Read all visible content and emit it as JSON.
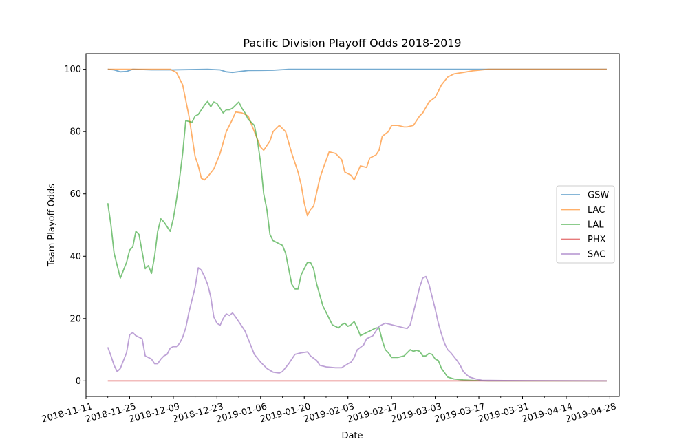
{
  "chart_data": {
    "type": "line",
    "title": "Pacific Division Playoff Odds 2018-2019",
    "xlabel": "Date",
    "ylabel": "Team Playoff Odds",
    "x_start": "2018-11-18",
    "x_end": "2019-04-27",
    "xlim": [
      "2018-11-11",
      "2019-05-01"
    ],
    "ylim": [
      -5,
      105
    ],
    "x_ticks": [
      "2018-11-11",
      "2018-11-25",
      "2018-12-09",
      "2018-12-23",
      "2019-01-06",
      "2019-01-20",
      "2019-02-03",
      "2019-02-17",
      "2019-03-03",
      "2019-03-17",
      "2019-03-31",
      "2019-04-14",
      "2019-04-28"
    ],
    "y_ticks": [
      0,
      20,
      40,
      60,
      80,
      100
    ],
    "grid": false,
    "legend_position": "center-right",
    "series": [
      {
        "name": "GSW",
        "color": "#1f77b4",
        "points": [
          [
            "2018-11-18",
            100
          ],
          [
            "2018-11-20",
            99.8
          ],
          [
            "2018-11-22",
            99.2
          ],
          [
            "2018-11-24",
            99.3
          ],
          [
            "2018-11-26",
            100
          ],
          [
            "2018-12-02",
            99.8
          ],
          [
            "2018-12-09",
            99.8
          ],
          [
            "2018-12-20",
            100
          ],
          [
            "2018-12-24",
            99.8
          ],
          [
            "2018-12-26",
            99.2
          ],
          [
            "2018-12-28",
            99
          ],
          [
            "2019-01-02",
            99.6
          ],
          [
            "2019-01-10",
            99.7
          ],
          [
            "2019-01-15",
            100
          ],
          [
            "2019-04-27",
            100
          ]
        ]
      },
      {
        "name": "LAC",
        "color": "#ff7f0e",
        "points": [
          [
            "2018-11-18",
            100
          ],
          [
            "2018-12-08",
            100
          ],
          [
            "2018-12-10",
            99
          ],
          [
            "2018-12-12",
            95
          ],
          [
            "2018-12-14",
            85
          ],
          [
            "2018-12-16",
            72
          ],
          [
            "2018-12-17",
            69
          ],
          [
            "2018-12-18",
            65
          ],
          [
            "2018-12-19",
            64.5
          ],
          [
            "2018-12-20",
            65.5
          ],
          [
            "2018-12-22",
            68
          ],
          [
            "2018-12-24",
            73
          ],
          [
            "2018-12-26",
            80
          ],
          [
            "2018-12-28",
            84
          ],
          [
            "2018-12-29",
            86.3
          ],
          [
            "2018-12-31",
            86
          ],
          [
            "2019-01-02",
            85
          ],
          [
            "2019-01-04",
            80
          ],
          [
            "2019-01-06",
            75
          ],
          [
            "2019-01-07",
            74
          ],
          [
            "2019-01-09",
            77
          ],
          [
            "2019-01-10",
            80
          ],
          [
            "2019-01-12",
            82
          ],
          [
            "2019-01-14",
            80
          ],
          [
            "2019-01-16",
            73
          ],
          [
            "2019-01-18",
            67
          ],
          [
            "2019-01-19",
            63
          ],
          [
            "2019-01-20",
            57
          ],
          [
            "2019-01-21",
            53
          ],
          [
            "2019-01-22",
            55
          ],
          [
            "2019-01-23",
            56
          ],
          [
            "2019-01-25",
            65
          ],
          [
            "2019-01-26",
            68
          ],
          [
            "2019-01-28",
            73.5
          ],
          [
            "2019-01-30",
            73
          ],
          [
            "2019-02-01",
            71
          ],
          [
            "2019-02-02",
            67
          ],
          [
            "2019-02-04",
            66
          ],
          [
            "2019-02-05",
            64.5
          ],
          [
            "2019-02-07",
            69
          ],
          [
            "2019-02-09",
            68.5
          ],
          [
            "2019-02-10",
            71.5
          ],
          [
            "2019-02-12",
            72.5
          ],
          [
            "2019-02-13",
            74
          ],
          [
            "2019-02-14",
            78.5
          ],
          [
            "2019-02-16",
            80
          ],
          [
            "2019-02-17",
            82
          ],
          [
            "2019-02-19",
            82
          ],
          [
            "2019-02-21",
            81.5
          ],
          [
            "2019-02-22",
            81.5
          ],
          [
            "2019-02-24",
            82
          ],
          [
            "2019-02-26",
            85
          ],
          [
            "2019-02-27",
            86
          ],
          [
            "2019-03-01",
            89.5
          ],
          [
            "2019-03-03",
            91
          ],
          [
            "2019-03-05",
            95
          ],
          [
            "2019-03-07",
            97.5
          ],
          [
            "2019-03-09",
            98.5
          ],
          [
            "2019-03-12",
            99
          ],
          [
            "2019-03-15",
            99.5
          ],
          [
            "2019-03-20",
            100
          ],
          [
            "2019-04-27",
            100
          ]
        ]
      },
      {
        "name": "LAL",
        "color": "#2ca02c",
        "points": [
          [
            "2018-11-18",
            57
          ],
          [
            "2018-11-19",
            50
          ],
          [
            "2018-11-20",
            41
          ],
          [
            "2018-11-22",
            33
          ],
          [
            "2018-11-24",
            38
          ],
          [
            "2018-11-25",
            42
          ],
          [
            "2018-11-26",
            43
          ],
          [
            "2018-11-27",
            48
          ],
          [
            "2018-11-28",
            47
          ],
          [
            "2018-11-30",
            36
          ],
          [
            "2018-12-01",
            37
          ],
          [
            "2018-12-02",
            34.5
          ],
          [
            "2018-12-03",
            40
          ],
          [
            "2018-12-04",
            48
          ],
          [
            "2018-12-05",
            52
          ],
          [
            "2018-12-06",
            51
          ],
          [
            "2018-12-08",
            48
          ],
          [
            "2018-12-09",
            52
          ],
          [
            "2018-12-10",
            58
          ],
          [
            "2018-12-11",
            65
          ],
          [
            "2018-12-12",
            73
          ],
          [
            "2018-12-13",
            83.5
          ],
          [
            "2018-12-15",
            83
          ],
          [
            "2018-12-16",
            85
          ],
          [
            "2018-12-17",
            85.5
          ],
          [
            "2018-12-19",
            88.5
          ],
          [
            "2018-12-20",
            89.7
          ],
          [
            "2018-12-21",
            88
          ],
          [
            "2018-12-22",
            89.5
          ],
          [
            "2018-12-23",
            89
          ],
          [
            "2018-12-25",
            86
          ],
          [
            "2018-12-26",
            87
          ],
          [
            "2018-12-27",
            87
          ],
          [
            "2018-12-28",
            87.5
          ],
          [
            "2018-12-30",
            89.5
          ],
          [
            "2018-12-31",
            87.5
          ],
          [
            "2019-01-01",
            86
          ],
          [
            "2019-01-02",
            84
          ],
          [
            "2019-01-04",
            82
          ],
          [
            "2019-01-05",
            77
          ],
          [
            "2019-01-06",
            70
          ],
          [
            "2019-01-07",
            60
          ],
          [
            "2019-01-08",
            55
          ],
          [
            "2019-01-09",
            47
          ],
          [
            "2019-01-10",
            45
          ],
          [
            "2019-01-12",
            44
          ],
          [
            "2019-01-13",
            43.5
          ],
          [
            "2019-01-14",
            41
          ],
          [
            "2019-01-15",
            36
          ],
          [
            "2019-01-16",
            31
          ],
          [
            "2019-01-17",
            29.5
          ],
          [
            "2019-01-18",
            29.5
          ],
          [
            "2019-01-19",
            34
          ],
          [
            "2019-01-21",
            38
          ],
          [
            "2019-01-22",
            38
          ],
          [
            "2019-01-23",
            36
          ],
          [
            "2019-01-24",
            31
          ],
          [
            "2019-01-26",
            24
          ],
          [
            "2019-01-28",
            20
          ],
          [
            "2019-01-29",
            18
          ],
          [
            "2019-01-31",
            17
          ],
          [
            "2019-02-01",
            18
          ],
          [
            "2019-02-02",
            18.5
          ],
          [
            "2019-02-03",
            17.5
          ],
          [
            "2019-02-04",
            18
          ],
          [
            "2019-02-05",
            19
          ],
          [
            "2019-02-06",
            17
          ],
          [
            "2019-02-07",
            14.5
          ],
          [
            "2019-02-09",
            15.5
          ],
          [
            "2019-02-10",
            16
          ],
          [
            "2019-02-12",
            17
          ],
          [
            "2019-02-13",
            17
          ],
          [
            "2019-02-14",
            13
          ],
          [
            "2019-02-15",
            10
          ],
          [
            "2019-02-16",
            9
          ],
          [
            "2019-02-17",
            7.5
          ],
          [
            "2019-02-19",
            7.5
          ],
          [
            "2019-02-21",
            8
          ],
          [
            "2019-02-22",
            9
          ],
          [
            "2019-02-23",
            10
          ],
          [
            "2019-02-24",
            9.5
          ],
          [
            "2019-02-25",
            9.8
          ],
          [
            "2019-02-26",
            9.5
          ],
          [
            "2019-02-27",
            8
          ],
          [
            "2019-02-28",
            8
          ],
          [
            "2019-03-01",
            8.8
          ],
          [
            "2019-03-02",
            8.5
          ],
          [
            "2019-03-03",
            7
          ],
          [
            "2019-03-04",
            6.5
          ],
          [
            "2019-03-05",
            4
          ],
          [
            "2019-03-07",
            1.2
          ],
          [
            "2019-03-09",
            0.6
          ],
          [
            "2019-03-12",
            0.3
          ],
          [
            "2019-03-16",
            0.1
          ],
          [
            "2019-03-20",
            0
          ],
          [
            "2019-04-27",
            0
          ]
        ]
      },
      {
        "name": "PHX",
        "color": "#d62728",
        "points": [
          [
            "2018-11-18",
            0
          ],
          [
            "2019-04-27",
            0
          ]
        ]
      },
      {
        "name": "SAC",
        "color": "#9467bd",
        "points": [
          [
            "2018-11-18",
            10.8
          ],
          [
            "2018-11-19",
            8
          ],
          [
            "2018-11-20",
            5
          ],
          [
            "2018-11-21",
            3
          ],
          [
            "2018-11-22",
            4
          ],
          [
            "2018-11-24",
            9
          ],
          [
            "2018-11-25",
            14.8
          ],
          [
            "2018-11-26",
            15.5
          ],
          [
            "2018-11-27",
            14.5
          ],
          [
            "2018-11-29",
            13.5
          ],
          [
            "2018-11-30",
            8
          ],
          [
            "2018-12-02",
            7
          ],
          [
            "2018-12-03",
            5.5
          ],
          [
            "2018-12-04",
            5.5
          ],
          [
            "2018-12-05",
            7
          ],
          [
            "2018-12-06",
            8
          ],
          [
            "2018-12-07",
            8.5
          ],
          [
            "2018-12-08",
            10.5
          ],
          [
            "2018-12-09",
            11
          ],
          [
            "2018-12-10",
            11
          ],
          [
            "2018-12-11",
            12
          ],
          [
            "2018-12-12",
            14
          ],
          [
            "2018-12-13",
            17
          ],
          [
            "2018-12-14",
            22
          ],
          [
            "2018-12-15",
            26
          ],
          [
            "2018-12-16",
            30
          ],
          [
            "2018-12-17",
            36.3
          ],
          [
            "2018-12-18",
            35.5
          ],
          [
            "2018-12-19",
            33.5
          ],
          [
            "2018-12-20",
            31
          ],
          [
            "2018-12-21",
            27
          ],
          [
            "2018-12-22",
            20.5
          ],
          [
            "2018-12-23",
            18.5
          ],
          [
            "2018-12-24",
            17.8
          ],
          [
            "2018-12-25",
            20
          ],
          [
            "2018-12-26",
            21.5
          ],
          [
            "2018-12-27",
            21
          ],
          [
            "2018-12-28",
            21.8
          ],
          [
            "2018-12-29",
            20.5
          ],
          [
            "2018-12-31",
            17.5
          ],
          [
            "2019-01-01",
            16
          ],
          [
            "2019-01-03",
            11
          ],
          [
            "2019-01-04",
            8.5
          ],
          [
            "2019-01-06",
            6
          ],
          [
            "2019-01-08",
            4
          ],
          [
            "2019-01-10",
            2.8
          ],
          [
            "2019-01-12",
            2.5
          ],
          [
            "2019-01-13",
            3
          ],
          [
            "2019-01-15",
            5.5
          ],
          [
            "2019-01-17",
            8.5
          ],
          [
            "2019-01-19",
            9
          ],
          [
            "2019-01-21",
            9.3
          ],
          [
            "2019-01-22",
            8
          ],
          [
            "2019-01-24",
            6.5
          ],
          [
            "2019-01-25",
            5
          ],
          [
            "2019-01-27",
            4.5
          ],
          [
            "2019-01-30",
            4.2
          ],
          [
            "2019-02-01",
            4.2
          ],
          [
            "2019-02-03",
            5.5
          ],
          [
            "2019-02-04",
            6
          ],
          [
            "2019-02-05",
            7.5
          ],
          [
            "2019-02-06",
            10
          ],
          [
            "2019-02-08",
            11.5
          ],
          [
            "2019-02-09",
            13.5
          ],
          [
            "2019-02-11",
            14.5
          ],
          [
            "2019-02-12",
            16
          ],
          [
            "2019-02-13",
            17.5
          ],
          [
            "2019-02-15",
            18.5
          ],
          [
            "2019-02-17",
            18
          ],
          [
            "2019-02-19",
            17.5
          ],
          [
            "2019-02-21",
            17
          ],
          [
            "2019-02-22",
            16.8
          ],
          [
            "2019-02-23",
            18
          ],
          [
            "2019-02-24",
            22
          ],
          [
            "2019-02-25",
            26
          ],
          [
            "2019-02-26",
            30
          ],
          [
            "2019-02-27",
            33
          ],
          [
            "2019-02-28",
            33.5
          ],
          [
            "2019-03-01",
            31
          ],
          [
            "2019-03-02",
            27
          ],
          [
            "2019-03-03",
            23
          ],
          [
            "2019-03-04",
            18.5
          ],
          [
            "2019-03-05",
            15
          ],
          [
            "2019-03-06",
            12
          ],
          [
            "2019-03-07",
            10
          ],
          [
            "2019-03-08",
            9
          ],
          [
            "2019-03-10",
            6.5
          ],
          [
            "2019-03-11",
            5
          ],
          [
            "2019-03-12",
            3
          ],
          [
            "2019-03-13",
            2
          ],
          [
            "2019-03-14",
            1.2
          ],
          [
            "2019-03-16",
            0.6
          ],
          [
            "2019-03-18",
            0.2
          ],
          [
            "2019-03-25",
            0.1
          ],
          [
            "2019-04-27",
            0
          ]
        ]
      }
    ]
  }
}
